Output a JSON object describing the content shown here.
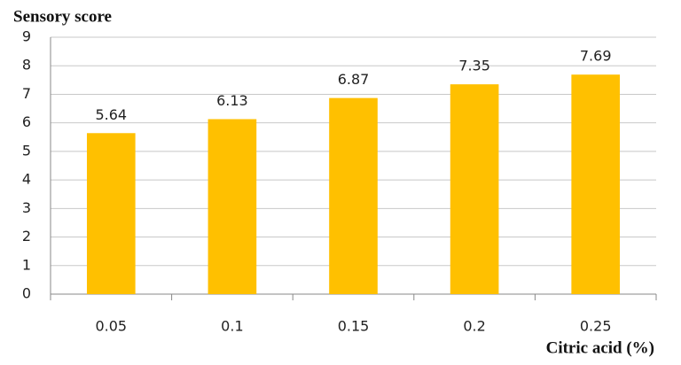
{
  "chart_data": {
    "type": "bar",
    "y_label": "Sensory score",
    "x_label": "Citric acid (%)",
    "categories": [
      "0.05",
      "0.1",
      "0.15",
      "0.2",
      "0.25"
    ],
    "values": [
      5.64,
      6.13,
      6.87,
      7.35,
      7.69
    ],
    "color": "#ffc000",
    "ylim": [
      0,
      9
    ],
    "yticks": [
      0,
      1,
      2,
      3,
      4,
      5,
      6,
      7,
      8,
      9
    ],
    "grid": true,
    "data_labels": true
  }
}
